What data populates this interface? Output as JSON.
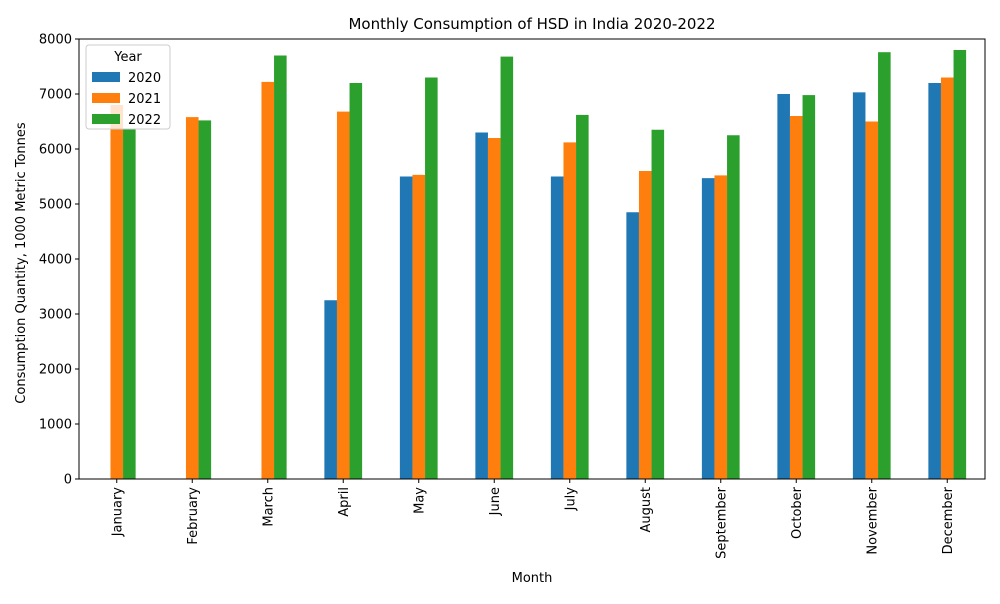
{
  "chart_data": {
    "type": "bar",
    "title": "Monthly Consumption of HSD in India 2020-2022",
    "xlabel": "Month",
    "ylabel": "Consumption Quantity, 1000 Metric Tonnes",
    "categories": [
      "January",
      "February",
      "March",
      "April",
      "May",
      "June",
      "July",
      "August",
      "September",
      "October",
      "November",
      "December"
    ],
    "series": [
      {
        "name": "2020",
        "color": "#1f77b4",
        "values": [
          null,
          null,
          null,
          3250,
          5500,
          6300,
          5500,
          4850,
          5470,
          7000,
          7030,
          7200
        ]
      },
      {
        "name": "2021",
        "color": "#ff7f0e",
        "values": [
          6800,
          6580,
          7220,
          6680,
          5530,
          6200,
          6120,
          5600,
          5520,
          6600,
          6500,
          7300
        ]
      },
      {
        "name": "2022",
        "color": "#2ca02c",
        "values": [
          6370,
          6520,
          7700,
          7200,
          7300,
          7680,
          6620,
          6350,
          6250,
          6980,
          7760,
          7800
        ]
      }
    ],
    "ylim": [
      0,
      8000
    ],
    "yticks": [
      0,
      1000,
      2000,
      3000,
      4000,
      5000,
      6000,
      7000,
      8000
    ],
    "grid": false,
    "legend": {
      "title": "Year",
      "position": "top-left"
    }
  }
}
